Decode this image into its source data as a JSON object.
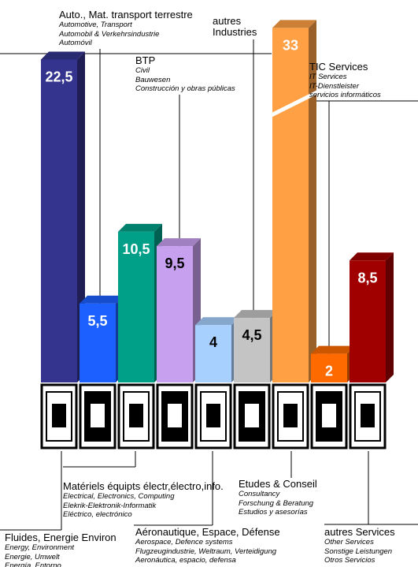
{
  "chart_data": {
    "type": "bar3d",
    "categories": [
      "Fluides, Energie Environ",
      "Auto., Mat. transport terrestre",
      "Matériels équipts électr,électro,info.",
      "BTP",
      "Aéronautique, Espace, Défense",
      "autres Industries",
      "Etudes & Conseil",
      "TIC Services",
      "autres Services"
    ],
    "details": [
      [
        "Energy, Environment",
        "Energie, Umwelt",
        "Energía, Entorno"
      ],
      [
        "Automotive, Transport",
        "Automobil & Verkehrsindustrie",
        "Automóvil"
      ],
      [
        "Electrical, Electronics, Computing",
        "Elekrik-Elektronik-Informatik",
        "Eléctrico, electrónico"
      ],
      [
        "Civil",
        "Bauwesen",
        "Construcción y obras públicas"
      ],
      [
        "Aerospace, Defence systems",
        "Flugzeugindustrie, Weltraum, Verteidigung",
        "Aeronáutica, espacio, defensa"
      ],
      [],
      [
        "Consultancy",
        "Forschung & Beratung",
        "Estudios y asesorías"
      ],
      [
        "IT Services",
        "IT-Dienstleister",
        "servicios informáticos"
      ],
      [
        "Other Services",
        "Sonstige Leistungen",
        "Otros Servicios"
      ]
    ],
    "values": [
      22.5,
      5.5,
      10.5,
      9.5,
      4,
      4.5,
      33,
      2,
      8.5
    ],
    "value_labels": [
      "22,5",
      "5,5",
      "10,5",
      "9,5",
      "4",
      "4,5",
      "33",
      "2",
      "8,5"
    ],
    "colors": [
      "#34348f",
      "#1c60ff",
      "#00a088",
      "#c8a0f0",
      "#a8d0ff",
      "#c4c4c4",
      "#ffa044",
      "#ff6a00",
      "#a00000"
    ],
    "value_label_colors": [
      "#ffffff",
      "#ffffff",
      "#ffffff",
      "#000000",
      "#000000",
      "#000000",
      "#ffffff",
      "#ffffff",
      "#ffffff"
    ]
  }
}
